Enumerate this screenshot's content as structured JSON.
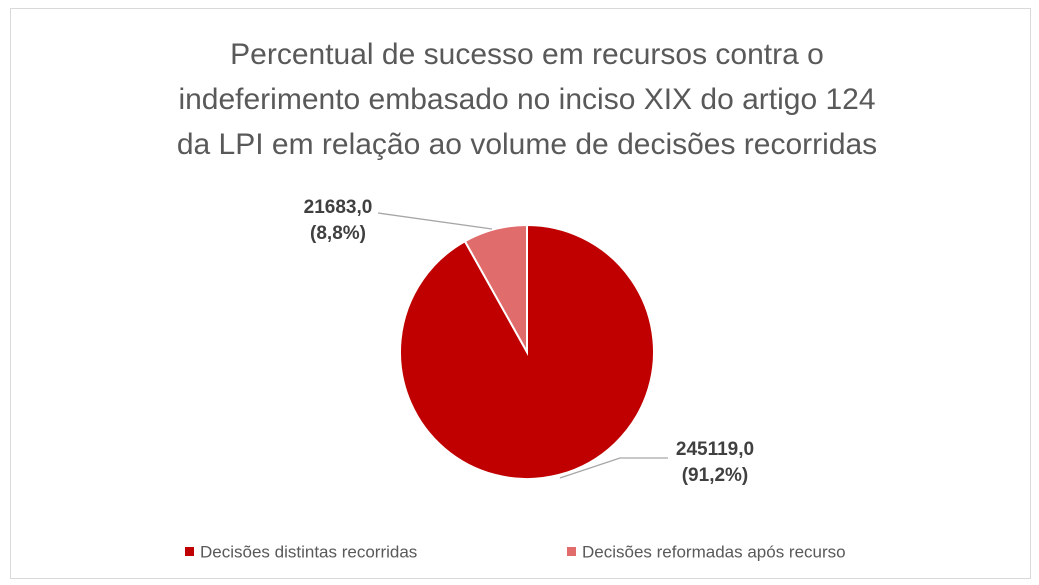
{
  "chart_data": {
    "type": "pie",
    "title": [
      "Percentual de sucesso em recursos contra o",
      "indeferimento embasado no inciso XIX do artigo 124",
      "da LPI em relação ao volume de decisões recorridas"
    ],
    "categories": [
      "Decisões distintas recorridas",
      "Decisões reformadas após recurso"
    ],
    "values": [
      245119,
      21683
    ],
    "value_labels": [
      "245119,0",
      "21683,0"
    ],
    "percent_labels": [
      "(91,2%)",
      "(8,8%)"
    ],
    "colors": [
      "#c00000",
      "#e06c6c"
    ],
    "legend": "bottom"
  }
}
